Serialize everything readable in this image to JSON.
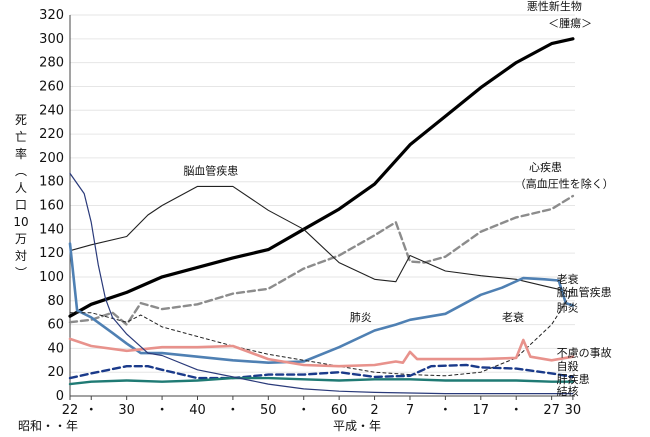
{
  "chart_data": {
    "type": "line",
    "ylim": [
      0,
      320
    ],
    "yticks": [
      "0",
      "20",
      "40",
      "60",
      "80",
      "100",
      "120",
      "140",
      "160",
      "180",
      "200",
      "220",
      "240",
      "260",
      "280",
      "300",
      "320"
    ],
    "ylabel_chars": [
      "死",
      "亡",
      "率",
      "︵",
      "人",
      "口",
      "10",
      "万",
      "対",
      "︶"
    ],
    "xticks": [
      {
        "label": "22",
        "year": 1947
      },
      {
        "label": "・",
        "year": 1950
      },
      {
        "label": "30",
        "year": 1955
      },
      {
        "label": "・",
        "year": 1960
      },
      {
        "label": "40",
        "year": 1965
      },
      {
        "label": "・",
        "year": 1970
      },
      {
        "label": "50",
        "year": 1975
      },
      {
        "label": "・",
        "year": 1980
      },
      {
        "label": "60",
        "year": 1985
      },
      {
        "label": "2",
        "year": 1990
      },
      {
        "label": "7",
        "year": 1995
      },
      {
        "label": "・",
        "year": 2000
      },
      {
        "label": "17",
        "year": 2005
      },
      {
        "label": "・",
        "year": 2010
      },
      {
        "label": "27",
        "year": 2015
      },
      {
        "label": "30",
        "year": 2018
      }
    ],
    "era_label_showa": "昭和・・年",
    "era_label_heisei": "平成・年",
    "series": [
      {
        "name": "悪性新生物＜腫瘍＞",
        "color": "#000000",
        "width": 3.2,
        "dash": "",
        "points": [
          [
            1947,
            67
          ],
          [
            1950,
            77
          ],
          [
            1955,
            87
          ],
          [
            1960,
            100
          ],
          [
            1965,
            108
          ],
          [
            1970,
            116
          ],
          [
            1975,
            123
          ],
          [
            1980,
            140
          ],
          [
            1985,
            157
          ],
          [
            1990,
            178
          ],
          [
            1995,
            211
          ],
          [
            2000,
            235
          ],
          [
            2005,
            259
          ],
          [
            2010,
            280
          ],
          [
            2015,
            296
          ],
          [
            2018,
            300
          ]
        ]
      },
      {
        "name": "心疾患（高血圧性を除く）",
        "color": "#8c8c8c",
        "width": 2.4,
        "dash": "7,4",
        "points": [
          [
            1947,
            62
          ],
          [
            1950,
            64
          ],
          [
            1953,
            70
          ],
          [
            1955,
            60
          ],
          [
            1957,
            78
          ],
          [
            1960,
            73
          ],
          [
            1965,
            77
          ],
          [
            1970,
            86
          ],
          [
            1975,
            90
          ],
          [
            1980,
            107
          ],
          [
            1985,
            118
          ],
          [
            1990,
            135
          ],
          [
            1993,
            146
          ],
          [
            1995,
            113
          ],
          [
            1997,
            112
          ],
          [
            2000,
            117
          ],
          [
            2005,
            138
          ],
          [
            2010,
            150
          ],
          [
            2015,
            157
          ],
          [
            2018,
            168
          ]
        ]
      },
      {
        "name": "脳血管疾患",
        "color": "#222222",
        "width": 1.1,
        "dash": "",
        "points": [
          [
            1947,
            122
          ],
          [
            1950,
            127
          ],
          [
            1955,
            134
          ],
          [
            1958,
            152
          ],
          [
            1960,
            160
          ],
          [
            1965,
            176
          ],
          [
            1970,
            176
          ],
          [
            1975,
            156
          ],
          [
            1980,
            140
          ],
          [
            1985,
            112
          ],
          [
            1990,
            98
          ],
          [
            1993,
            96
          ],
          [
            1995,
            118
          ],
          [
            2000,
            105
          ],
          [
            2005,
            101
          ],
          [
            2010,
            98
          ],
          [
            2015,
            91
          ],
          [
            2018,
            87
          ]
        ]
      },
      {
        "name": "肺炎",
        "color": "#4f80b3",
        "width": 2.6,
        "dash": "",
        "points": [
          [
            1947,
            128
          ],
          [
            1948,
            72
          ],
          [
            1950,
            66
          ],
          [
            1953,
            53
          ],
          [
            1955,
            44
          ],
          [
            1957,
            36
          ],
          [
            1960,
            36
          ],
          [
            1965,
            33
          ],
          [
            1970,
            30
          ],
          [
            1975,
            28
          ],
          [
            1980,
            29
          ],
          [
            1985,
            41
          ],
          [
            1990,
            55
          ],
          [
            1993,
            60
          ],
          [
            1995,
            64
          ],
          [
            2000,
            69
          ],
          [
            2005,
            85
          ],
          [
            2008,
            91
          ],
          [
            2011,
            99
          ],
          [
            2014,
            98
          ],
          [
            2016,
            97
          ],
          [
            2017,
            78
          ],
          [
            2018,
            76
          ]
        ]
      },
      {
        "name": "老衰",
        "color": "#222222",
        "width": 1.0,
        "dash": "3,3",
        "points": [
          [
            1947,
            70
          ],
          [
            1950,
            70
          ],
          [
            1955,
            62
          ],
          [
            1957,
            68
          ],
          [
            1960,
            58
          ],
          [
            1965,
            50
          ],
          [
            1970,
            42
          ],
          [
            1975,
            35
          ],
          [
            1980,
            30
          ],
          [
            1985,
            25
          ],
          [
            1990,
            20
          ],
          [
            1995,
            18
          ],
          [
            2000,
            17
          ],
          [
            2005,
            20
          ],
          [
            2010,
            32
          ],
          [
            2015,
            60
          ],
          [
            2018,
            88
          ]
        ]
      },
      {
        "name": "不慮の事故",
        "color": "#e8928c",
        "width": 2.6,
        "dash": "",
        "points": [
          [
            1947,
            48
          ],
          [
            1950,
            42
          ],
          [
            1955,
            38
          ],
          [
            1960,
            41
          ],
          [
            1965,
            41
          ],
          [
            1970,
            42
          ],
          [
            1975,
            31
          ],
          [
            1980,
            26
          ],
          [
            1985,
            25
          ],
          [
            1990,
            26
          ],
          [
            1993,
            29
          ],
          [
            1994,
            28
          ],
          [
            1995,
            37
          ],
          [
            1996,
            31
          ],
          [
            2000,
            31
          ],
          [
            2005,
            31
          ],
          [
            2010,
            32
          ],
          [
            2011,
            47
          ],
          [
            2012,
            33
          ],
          [
            2015,
            30
          ],
          [
            2018,
            33
          ]
        ]
      },
      {
        "name": "自殺",
        "color": "#1a3a8a",
        "width": 2.4,
        "dash": "7,4",
        "points": [
          [
            1947,
            15
          ],
          [
            1950,
            19
          ],
          [
            1955,
            25
          ],
          [
            1958,
            25
          ],
          [
            1960,
            22
          ],
          [
            1965,
            15
          ],
          [
            1970,
            15
          ],
          [
            1975,
            18
          ],
          [
            1980,
            18
          ],
          [
            1985,
            20
          ],
          [
            1990,
            16
          ],
          [
            1995,
            17
          ],
          [
            1998,
            25
          ],
          [
            2003,
            26
          ],
          [
            2005,
            24
          ],
          [
            2010,
            23
          ],
          [
            2015,
            19
          ],
          [
            2018,
            16
          ]
        ]
      },
      {
        "name": "肝疾患",
        "color": "#1f7a74",
        "width": 2.4,
        "dash": "",
        "points": [
          [
            1947,
            10
          ],
          [
            1950,
            12
          ],
          [
            1955,
            13
          ],
          [
            1960,
            12
          ],
          [
            1965,
            13
          ],
          [
            1970,
            15
          ],
          [
            1975,
            15
          ],
          [
            1980,
            14
          ],
          [
            1985,
            13
          ],
          [
            1990,
            14
          ],
          [
            1995,
            14
          ],
          [
            2000,
            13
          ],
          [
            2005,
            13
          ],
          [
            2010,
            13
          ],
          [
            2015,
            12
          ],
          [
            2018,
            12
          ]
        ]
      },
      {
        "name": "結核",
        "color": "#2a3a7a",
        "width": 1.2,
        "dash": "",
        "points": [
          [
            1947,
            187
          ],
          [
            1949,
            170
          ],
          [
            1950,
            146
          ],
          [
            1951,
            110
          ],
          [
            1952,
            82
          ],
          [
            1953,
            66
          ],
          [
            1955,
            52
          ],
          [
            1958,
            36
          ],
          [
            1960,
            34
          ],
          [
            1965,
            22
          ],
          [
            1970,
            16
          ],
          [
            1975,
            10
          ],
          [
            1980,
            6
          ],
          [
            1985,
            4
          ],
          [
            1990,
            3
          ],
          [
            1995,
            2.5
          ],
          [
            2000,
            2
          ],
          [
            2005,
            2
          ],
          [
            2010,
            2
          ],
          [
            2015,
            2
          ],
          [
            2018,
            2
          ]
        ]
      }
    ],
    "labels": [
      {
        "text": "悪性新生物",
        "year": 2011.5,
        "y": 324
      },
      {
        "text": "＜腫瘍＞",
        "year": 2014.5,
        "y": 310
      },
      {
        "text": "脳血管疾患",
        "year": 1963,
        "y": 186
      },
      {
        "text": "心疾患",
        "year": 2011.8,
        "y": 189
      },
      {
        "text": "（高血圧性を除く）",
        "year": 2009.8,
        "y": 175
      },
      {
        "text": "肺炎",
        "year": 1986.5,
        "y": 63
      },
      {
        "text": "老衰",
        "year": 2008,
        "y": 63
      },
      {
        "text": "老衰",
        "year": 2015.7,
        "y": 95
      },
      {
        "text": "脳血管疾患",
        "year": 2015.7,
        "y": 84
      },
      {
        "text": "肺炎",
        "year": 2015.7,
        "y": 71
      },
      {
        "text": "不慮の事故",
        "year": 2015.7,
        "y": 33
      },
      {
        "text": "自殺",
        "year": 2015.7,
        "y": 22
      },
      {
        "text": "肝疾患",
        "year": 2015.7,
        "y": 11
      },
      {
        "text": "結核",
        "year": 2015.7,
        "y": 1
      }
    ]
  }
}
